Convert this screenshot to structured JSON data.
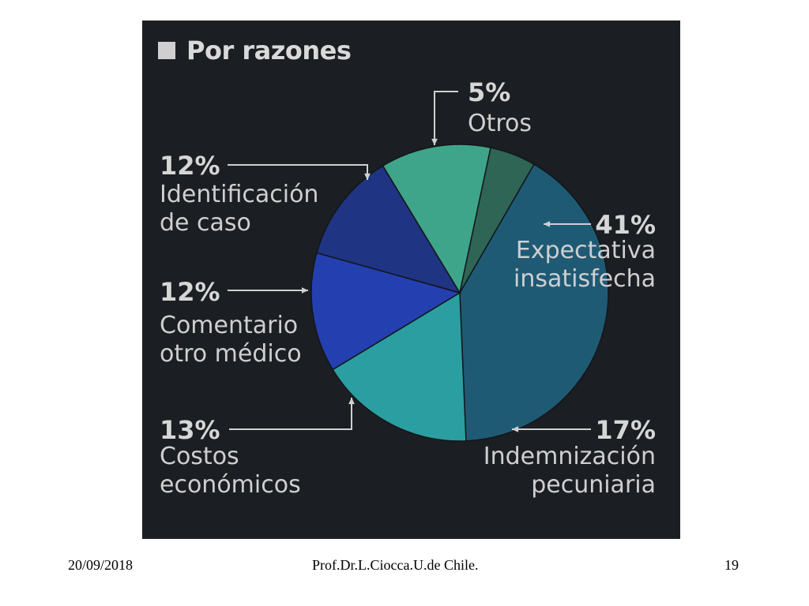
{
  "chart_data": {
    "type": "pie",
    "title": "Por razones",
    "slices": [
      {
        "label_lines": [
          "Expectativa",
          "insatisfecha"
        ],
        "pct_label": "41%",
        "value": 41,
        "color": "#1f5a75"
      },
      {
        "label_lines": [
          "Indemnización",
          "pecuniaria"
        ],
        "pct_label": "17%",
        "value": 17,
        "color": "#2a9ea0"
      },
      {
        "label_lines": [
          "Costos",
          "económicos"
        ],
        "pct_label": "13%",
        "value": 13,
        "color": "#243fb0"
      },
      {
        "label_lines": [
          "Comentario",
          "otro médico"
        ],
        "pct_label": "12%",
        "value": 12,
        "color": "#1f3482"
      },
      {
        "label_lines": [
          "Identificación",
          "de caso"
        ],
        "pct_label": "12%",
        "value": 12,
        "color": "#3fa58a"
      },
      {
        "label_lines": [
          "Otros"
        ],
        "pct_label": "5%",
        "value": 5,
        "color": "#2e6555"
      }
    ]
  },
  "footer": {
    "date": "20/09/2018",
    "author": "Prof.Dr.L.Ciocca.U.de Chile.",
    "page": "19"
  }
}
